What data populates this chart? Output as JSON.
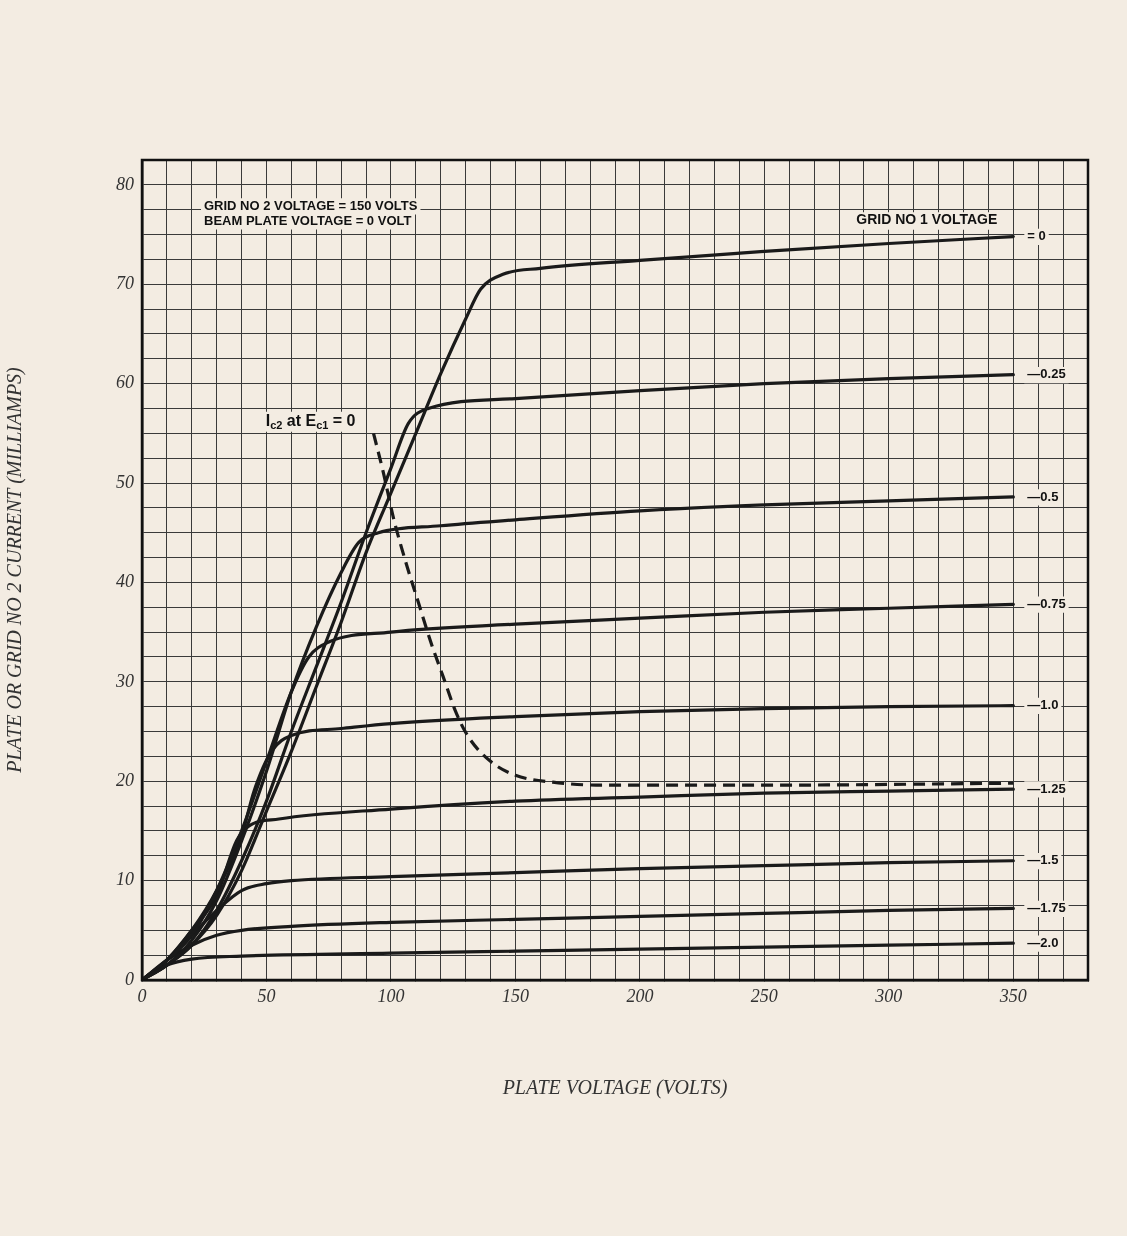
{
  "chart_data": {
    "type": "line",
    "xlabel": "PLATE VOLTAGE (VOLTS)",
    "ylabel": "PLATE OR GRID NO 2 CURRENT (MILLIAMPS)",
    "legend_title": "GRID NO 1 VOLTAGE",
    "annotations": [
      "GRID NO 2 VOLTAGE = 150 VOLTS",
      "BEAM PLATE VOLTAGE = 0 VOLT"
    ],
    "xlim": [
      0,
      380
    ],
    "ylim": [
      0,
      82.5
    ],
    "xticks": [
      0,
      {
        "value": 10,
        "label": null
      },
      {
        "value": 20,
        "label": null
      },
      {
        "value": 30,
        "label": null
      },
      {
        "value": 40,
        "label": null
      },
      50,
      {
        "value": 60,
        "label": null
      },
      {
        "value": 70,
        "label": null
      },
      {
        "value": 80,
        "label": null
      },
      {
        "value": 90,
        "label": null
      },
      100,
      {
        "value": 110,
        "label": null
      },
      {
        "value": 120,
        "label": null
      },
      {
        "value": 130,
        "label": null
      },
      {
        "value": 140,
        "label": null
      },
      150,
      {
        "value": 160,
        "label": null
      },
      {
        "value": 170,
        "label": null
      },
      {
        "value": 180,
        "label": null
      },
      {
        "value": 190,
        "label": null
      },
      200,
      {
        "value": 210,
        "label": null
      },
      {
        "value": 220,
        "label": null
      },
      {
        "value": 230,
        "label": null
      },
      {
        "value": 240,
        "label": null
      },
      250,
      {
        "value": 260,
        "label": null
      },
      {
        "value": 270,
        "label": null
      },
      {
        "value": 280,
        "label": null
      },
      {
        "value": 290,
        "label": null
      },
      300,
      {
        "value": 310,
        "label": null
      },
      {
        "value": 320,
        "label": null
      },
      {
        "value": 330,
        "label": null
      },
      {
        "value": 340,
        "label": null
      },
      350,
      {
        "value": 360,
        "label": null
      },
      {
        "value": 370,
        "label": null
      },
      {
        "value": 380,
        "label": null
      }
    ],
    "yticks": [
      0,
      {
        "value": 2.5,
        "label": null
      },
      {
        "value": 5,
        "label": null
      },
      {
        "value": 7.5,
        "label": null
      },
      10,
      {
        "value": 12.5,
        "label": null
      },
      {
        "value": 15,
        "label": null
      },
      {
        "value": 17.5,
        "label": null
      },
      20,
      {
        "value": 22.5,
        "label": null
      },
      {
        "value": 25,
        "label": null
      },
      {
        "value": 27.5,
        "label": null
      },
      30,
      {
        "value": 32.5,
        "label": null
      },
      {
        "value": 35,
        "label": null
      },
      {
        "value": 37.5,
        "label": null
      },
      40,
      {
        "value": 42.5,
        "label": null
      },
      {
        "value": 45,
        "label": null
      },
      {
        "value": 47.5,
        "label": null
      },
      50,
      {
        "value": 52.5,
        "label": null
      },
      {
        "value": 55,
        "label": null
      },
      {
        "value": 57.5,
        "label": null
      },
      60,
      {
        "value": 62.5,
        "label": null
      },
      {
        "value": 65,
        "label": null
      },
      {
        "value": 67.5,
        "label": null
      },
      70,
      {
        "value": 72.5,
        "label": null
      },
      {
        "value": 75,
        "label": null
      },
      {
        "value": 77.5,
        "label": null
      },
      80,
      {
        "value": 82.5,
        "label": null
      }
    ],
    "grid": true,
    "legend": false,
    "marker": "none",
    "line_style": "solid",
    "series": [
      {
        "name": "= 0",
        "color": "#1a1a1a",
        "x": [
          0,
          10,
          20,
          30,
          40,
          50,
          60,
          70,
          80,
          90,
          100,
          110,
          120,
          130,
          136,
          145,
          160,
          200,
          250,
          300,
          350
        ],
        "values": [
          0,
          1.5,
          3.5,
          6.5,
          11,
          17,
          23,
          29.5,
          36,
          43,
          49,
          55,
          61,
          66.5,
          69.5,
          71,
          71.6,
          72.4,
          73.3,
          74.1,
          74.8
        ]
      },
      {
        "name": "—0.25",
        "color": "#1a1a1a",
        "x": [
          0,
          10,
          20,
          30,
          40,
          50,
          60,
          70,
          80,
          90,
          100,
          107,
          115,
          150,
          200,
          250,
          300,
          350
        ],
        "values": [
          0,
          1.5,
          3.5,
          7,
          12,
          18,
          25,
          31.5,
          38,
          45,
          51.5,
          56,
          57.5,
          58.5,
          59.3,
          60,
          60.5,
          60.9
        ]
      },
      {
        "name": "—0.5",
        "color": "#1a1a1a",
        "x": [
          0,
          10,
          20,
          30,
          40,
          50,
          60,
          70,
          80,
          87,
          95,
          120,
          150,
          200,
          250,
          300,
          350
        ],
        "values": [
          0,
          1.5,
          4,
          8,
          14,
          21,
          29,
          35.5,
          41,
          44,
          45,
          45.7,
          46.3,
          47.2,
          47.8,
          48.2,
          48.6
        ]
      },
      {
        "name": "—0.75",
        "color": "#1a1a1a",
        "x": [
          0,
          10,
          20,
          30,
          40,
          50,
          60,
          67,
          75,
          100,
          150,
          200,
          250,
          300,
          350
        ],
        "values": [
          0,
          2,
          4.5,
          9,
          15,
          22,
          29,
          32.5,
          34,
          35,
          35.8,
          36.4,
          37,
          37.4,
          37.8
        ]
      },
      {
        "name": "—1.0",
        "color": "#1a1a1a",
        "x": [
          0,
          10,
          20,
          30,
          40,
          45,
          52,
          60,
          80,
          100,
          150,
          200,
          250,
          300,
          350
        ],
        "values": [
          0,
          2,
          5,
          9,
          14.5,
          19,
          23,
          24.6,
          25.3,
          25.8,
          26.5,
          27,
          27.3,
          27.5,
          27.6
        ]
      },
      {
        "name": "—1.25",
        "color": "#1a1a1a",
        "x": [
          0,
          10,
          20,
          30,
          38,
          43,
          55,
          100,
          150,
          200,
          250,
          300,
          350
        ],
        "values": [
          0,
          2,
          5,
          8.5,
          14,
          15.5,
          16.2,
          17.2,
          18,
          18.4,
          18.8,
          19,
          19.2
        ]
      },
      {
        "name": "—1.5",
        "color": "#1a1a1a",
        "x": [
          0,
          10,
          20,
          30,
          40,
          50,
          60,
          100,
          150,
          200,
          250,
          300,
          350
        ],
        "values": [
          0,
          2,
          4.5,
          7,
          9,
          9.7,
          10,
          10.4,
          10.8,
          11.2,
          11.5,
          11.8,
          12
        ]
      },
      {
        "name": "—1.75",
        "color": "#1a1a1a",
        "x": [
          0,
          10,
          20,
          30,
          40,
          60,
          100,
          150,
          200,
          250,
          300,
          350
        ],
        "values": [
          0,
          2,
          3.5,
          4.5,
          5,
          5.4,
          5.8,
          6.1,
          6.4,
          6.7,
          7,
          7.2
        ]
      },
      {
        "name": "—2.0",
        "color": "#1a1a1a",
        "x": [
          0,
          10,
          20,
          40,
          100,
          150,
          200,
          250,
          300,
          350
        ],
        "values": [
          0,
          1.5,
          2.1,
          2.4,
          2.7,
          2.9,
          3.1,
          3.3,
          3.5,
          3.7
        ]
      },
      {
        "name": "I$_{c2}$ at E$_{c1}$ = 0",
        "color": "#1a1a1a",
        "line_style": "dashed",
        "x": [
          93,
          97,
          101,
          106,
          111,
          116,
          121,
          126,
          131,
          140,
          150,
          165,
          185,
          250,
          350
        ],
        "values": [
          55,
          51,
          46.5,
          42,
          38,
          34,
          30.5,
          27,
          24.5,
          22,
          20.6,
          19.9,
          19.6,
          19.6,
          19.8
        ]
      }
    ]
  }
}
